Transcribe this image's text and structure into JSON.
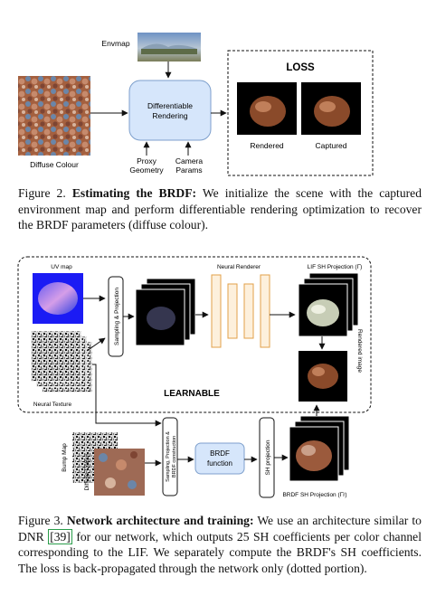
{
  "figure2": {
    "envmap_label": "Envmap",
    "diffuse_label": "Diffuse Colour",
    "renderer_label_1": "Differentiable",
    "renderer_label_2": "Rendering",
    "proxy_label_1": "Proxy",
    "proxy_label_2": "Geometry",
    "camera_label_1": "Camera",
    "camera_label_2": "Params",
    "loss_title": "LOSS",
    "rendered_label": "Rendered",
    "captured_label": "Captured",
    "caption_label": "Figure 2.",
    "caption_title": "Estimating the BRDF:",
    "caption_text": " We initialize the scene with the captured environment map and perform differentiable rendering optimization to recover the BRDF parameters (diffuse colour)."
  },
  "figure3": {
    "uv_map_label": "UV map",
    "neural_texture_label": "Neural Texture",
    "sampling_label": "Sampling & Projection",
    "neural_renderer_label": "Neural Renderer",
    "lif_label": "LIF SH Projection (Γ̄)",
    "rendered_image_label": "Rendered image",
    "learnable_label": "LEARNABLE",
    "bump_map_label": "Bump Map",
    "diffuse_label": "Diffuse Colour",
    "brdf_sampling_label_1": "Sampling, Projection &",
    "brdf_sampling_label_2": "BRDF construction",
    "brdf_function_label_1": "BRDF",
    "brdf_function_label_2": "function",
    "sh_projection_label": "SH projection",
    "brdf_sh_label": "BRDF SH Projection (Γ̄r)",
    "caption_label": "Figure 3.",
    "caption_title": "Network architecture and training:",
    "caption_text_1": " We use an architecture similar to DNR ",
    "caption_cite": "[39]",
    "caption_text_2": " for our network, which outputs 25 SH coefficients per color channel corresponding to the LIF. We separately compute the BRDF's SH coefficients. The loss is back-propagated through the network only (dotted portion)."
  },
  "colors": {
    "renderer_fill": "#d6e6fb",
    "renderer_stroke": "#7d9fcc",
    "neural_renderer_fill": "#fdf0dc",
    "neural_renderer_stroke": "#e2a04a",
    "cite_box": "#2a9d4a"
  }
}
